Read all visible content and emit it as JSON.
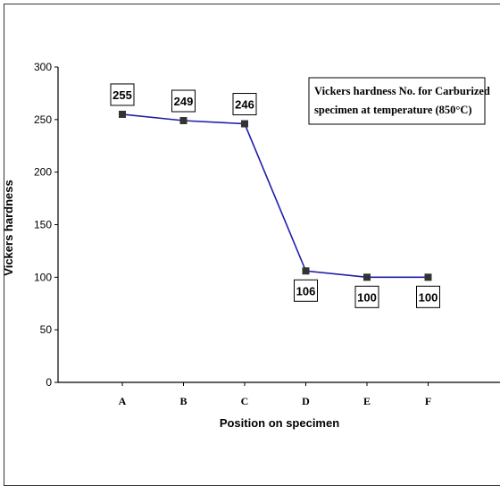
{
  "chart_data": {
    "type": "line",
    "categories": [
      "A",
      "B",
      "C",
      "D",
      "E",
      "F"
    ],
    "values": [
      255,
      249,
      246,
      106,
      100,
      100
    ],
    "data_labels": [
      "255",
      "249",
      "246",
      "106",
      "100",
      "100"
    ],
    "xlabel": "Position on specimen",
    "ylabel": "Vickers hardness",
    "ylim": [
      0,
      300
    ],
    "yticks": [
      "0",
      "50",
      "100",
      "150",
      "200",
      "250",
      "300"
    ],
    "annotation": {
      "line1": "Vickers hardness No. for Carburized",
      "line2": "specimen at temperature (850°C)"
    },
    "line_color": "#1f1fa8",
    "marker_color": "#333333",
    "grid": false
  }
}
